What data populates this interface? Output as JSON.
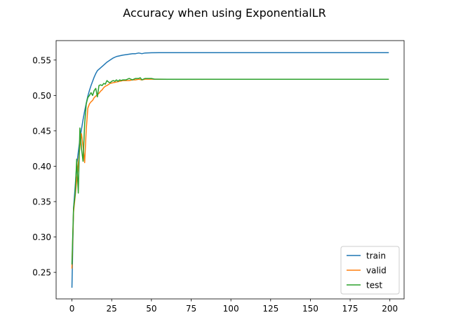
{
  "chart_data": {
    "type": "line",
    "title": "Accuracy when using ExponentialLR",
    "xlabel": "",
    "ylabel": "",
    "xlim": [
      -9.95,
      208.95
    ],
    "ylim": [
      0.2125,
      0.5775
    ],
    "xticks": [
      0,
      25,
      50,
      75,
      100,
      125,
      150,
      175,
      200
    ],
    "xtick_labels": [
      "0",
      "25",
      "50",
      "75",
      "100",
      "125",
      "150",
      "175",
      "200"
    ],
    "yticks": [
      0.25,
      0.3,
      0.35,
      0.4,
      0.45,
      0.5,
      0.55
    ],
    "ytick_labels": [
      "0.25",
      "0.30",
      "0.35",
      "0.40",
      "0.45",
      "0.50",
      "0.55"
    ],
    "grid": false,
    "legend_position": "lower-right",
    "series": [
      {
        "name": "train",
        "color": "#1f77b4",
        "x": [
          0,
          1,
          2,
          3,
          4,
          5,
          6,
          7,
          8,
          9,
          10,
          11,
          12,
          13,
          14,
          15,
          16,
          17,
          18,
          19,
          20,
          22,
          24,
          26,
          28,
          30,
          32,
          35,
          38,
          40,
          42,
          44,
          46,
          50,
          55,
          60,
          65,
          70,
          80,
          100,
          150,
          199
        ],
        "y": [
          0.229,
          0.34,
          0.37,
          0.402,
          0.42,
          0.438,
          0.452,
          0.466,
          0.478,
          0.489,
          0.499,
          0.507,
          0.514,
          0.52,
          0.526,
          0.531,
          0.535,
          0.537,
          0.539,
          0.541,
          0.543,
          0.547,
          0.55,
          0.553,
          0.555,
          0.556,
          0.557,
          0.558,
          0.559,
          0.559,
          0.56,
          0.559,
          0.56,
          0.5603,
          0.5604,
          0.5604,
          0.5605,
          0.5605,
          0.5605,
          0.5605,
          0.5605,
          0.5605
        ]
      },
      {
        "name": "valid",
        "color": "#ff7f0e",
        "x": [
          0,
          1,
          2,
          3,
          4,
          5,
          6,
          7,
          8,
          9,
          10,
          11,
          12,
          13,
          14,
          15,
          16,
          17,
          18,
          19,
          20,
          21,
          22,
          24,
          26,
          28,
          30,
          32,
          34,
          36,
          38,
          40,
          42,
          44,
          46,
          48,
          50,
          55,
          60,
          80,
          100,
          150,
          199
        ],
        "y": [
          0.256,
          0.335,
          0.357,
          0.38,
          0.403,
          0.428,
          0.446,
          0.428,
          0.405,
          0.452,
          0.482,
          0.488,
          0.491,
          0.493,
          0.497,
          0.499,
          0.501,
          0.503,
          0.506,
          0.508,
          0.511,
          0.513,
          0.514,
          0.517,
          0.518,
          0.519,
          0.52,
          0.521,
          0.521,
          0.521,
          0.522,
          0.522,
          0.523,
          0.522,
          0.523,
          0.523,
          0.523,
          0.5228,
          0.5228,
          0.5228,
          0.5228,
          0.5228,
          0.5228
        ]
      },
      {
        "name": "test",
        "color": "#2ca02c",
        "x": [
          0,
          1,
          2,
          3,
          4,
          5,
          6,
          7,
          8,
          9,
          10,
          11,
          12,
          13,
          14,
          15,
          16,
          17,
          18,
          19,
          20,
          21,
          22,
          23,
          24,
          25,
          26,
          27,
          28,
          29,
          30,
          31,
          32,
          34,
          36,
          38,
          40,
          42,
          43,
          44,
          45,
          46,
          48,
          50,
          52,
          55,
          60,
          80,
          100,
          150,
          199
        ],
        "y": [
          0.262,
          0.34,
          0.36,
          0.41,
          0.362,
          0.454,
          0.425,
          0.407,
          0.46,
          0.488,
          0.497,
          0.5,
          0.504,
          0.5,
          0.507,
          0.51,
          0.498,
          0.514,
          0.515,
          0.514,
          0.517,
          0.516,
          0.521,
          0.519,
          0.518,
          0.52,
          0.521,
          0.52,
          0.522,
          0.52,
          0.522,
          0.521,
          0.522,
          0.522,
          0.524,
          0.522,
          0.524,
          0.524,
          0.525,
          0.522,
          0.523,
          0.524,
          0.524,
          0.524,
          0.523,
          0.523,
          0.5228,
          0.5228,
          0.5228,
          0.5228,
          0.5228
        ]
      }
    ]
  }
}
